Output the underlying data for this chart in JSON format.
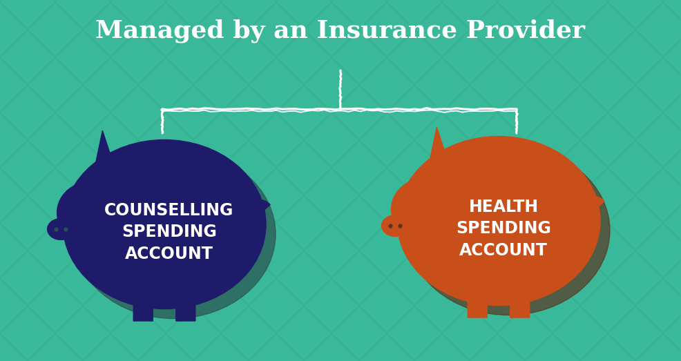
{
  "title": "Managed by an Insurance Provider",
  "title_color": "#ffffff",
  "title_fontsize": 26,
  "bg_color": "#3ab99a",
  "pig_left_color": "#1e1b6b",
  "pig_left_shadow": "#2a5050",
  "pig_right_color": "#c94f1a",
  "pig_right_shadow": "#5a3520",
  "pig_left_label": "COUNSELLING\nSPENDING\nACCOUNT",
  "pig_right_label": "HEALTH\nSPENDING\nACCOUNT",
  "label_color": "#ffffff",
  "label_fontsize": 17,
  "bracket_color": "#ffffff",
  "grid_color": "#33a98a",
  "grid_alpha": 0.55
}
